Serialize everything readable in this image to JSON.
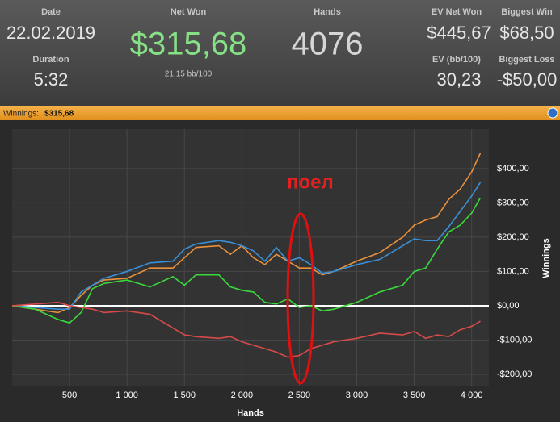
{
  "header": {
    "date_label": "Date",
    "date": "22.02.2019",
    "duration_label": "Duration",
    "duration": "5:32",
    "net_won_label": "Net Won",
    "net_won": "$315,68",
    "bb_per_100": "21,15 bb/100",
    "hands_label": "Hands",
    "hands": "4076",
    "ev_net_won_label": "EV Net Won",
    "ev_net_won": "$445,67",
    "biggest_win_label": "Biggest Win",
    "biggest_win": "$68,50",
    "ev_bb_label": "EV (bb/100)",
    "ev_bb": "30,23",
    "biggest_loss_label": "Biggest Loss",
    "biggest_loss": "-$50,00"
  },
  "panel": {
    "label": "Winnings:",
    "value": "$315,68"
  },
  "chart_data": {
    "type": "line",
    "annotation": "поел",
    "x_label": "Hands",
    "y_label": "Winnings",
    "x": [
      0,
      200,
      400,
      500,
      600,
      700,
      800,
      1000,
      1200,
      1400,
      1500,
      1600,
      1800,
      1900,
      2000,
      2100,
      2200,
      2300,
      2400,
      2500,
      2600,
      2700,
      2800,
      3000,
      3200,
      3400,
      3500,
      3600,
      3700,
      3800,
      3900,
      4000,
      4076
    ],
    "series": [
      {
        "color": "#e8913a",
        "values": [
          0,
          -10,
          -20,
          -5,
          30,
          60,
          75,
          80,
          110,
          110,
          140,
          170,
          175,
          150,
          175,
          140,
          120,
          150,
          130,
          110,
          110,
          90,
          100,
          130,
          155,
          200,
          235,
          250,
          260,
          310,
          340,
          390,
          445
        ]
      },
      {
        "color": "#3a8fd8",
        "values": [
          0,
          -5,
          -10,
          -10,
          40,
          60,
          80,
          100,
          125,
          130,
          165,
          180,
          190,
          185,
          175,
          160,
          130,
          170,
          130,
          140,
          120,
          95,
          100,
          120,
          135,
          175,
          195,
          190,
          190,
          230,
          275,
          320,
          360
        ]
      },
      {
        "color": "#3ad83a",
        "values": [
          0,
          -10,
          -40,
          -50,
          -20,
          50,
          65,
          75,
          55,
          85,
          60,
          90,
          90,
          55,
          45,
          40,
          10,
          5,
          20,
          -5,
          0,
          -15,
          -10,
          10,
          40,
          60,
          100,
          110,
          165,
          215,
          235,
          270,
          315
        ]
      },
      {
        "color": "#d84a4a",
        "values": [
          0,
          5,
          10,
          0,
          -5,
          -10,
          -20,
          -15,
          -25,
          -65,
          -85,
          -90,
          -95,
          -90,
          -105,
          -115,
          -125,
          -135,
          -150,
          -145,
          -125,
          -115,
          -105,
          -95,
          -80,
          -85,
          -75,
          -95,
          -85,
          -90,
          -70,
          -60,
          -45
        ]
      }
    ],
    "xlim": [
      0,
      4150
    ],
    "ylim": [
      -233,
      515
    ],
    "xticks": [
      {
        "value": 500,
        "label": "500"
      },
      {
        "value": 1000,
        "label": "1 000"
      },
      {
        "value": 1500,
        "label": "1 500"
      },
      {
        "value": 2000,
        "label": "2 000"
      },
      {
        "value": 2500,
        "label": "2 500"
      },
      {
        "value": 3000,
        "label": "3 000"
      },
      {
        "value": 3500,
        "label": "3 500"
      },
      {
        "value": 4000,
        "label": "4 000"
      }
    ],
    "yticks": [
      {
        "value": -200,
        "label": "-$200,00"
      },
      {
        "value": -100,
        "label": "-$100,00"
      },
      {
        "value": 0,
        "label": "$0,00"
      },
      {
        "value": 100,
        "label": "$100,00"
      },
      {
        "value": 200,
        "label": "$200,00"
      },
      {
        "value": 300,
        "label": "$300,00"
      },
      {
        "value": 400,
        "label": "$400,00"
      }
    ],
    "grid": true
  }
}
